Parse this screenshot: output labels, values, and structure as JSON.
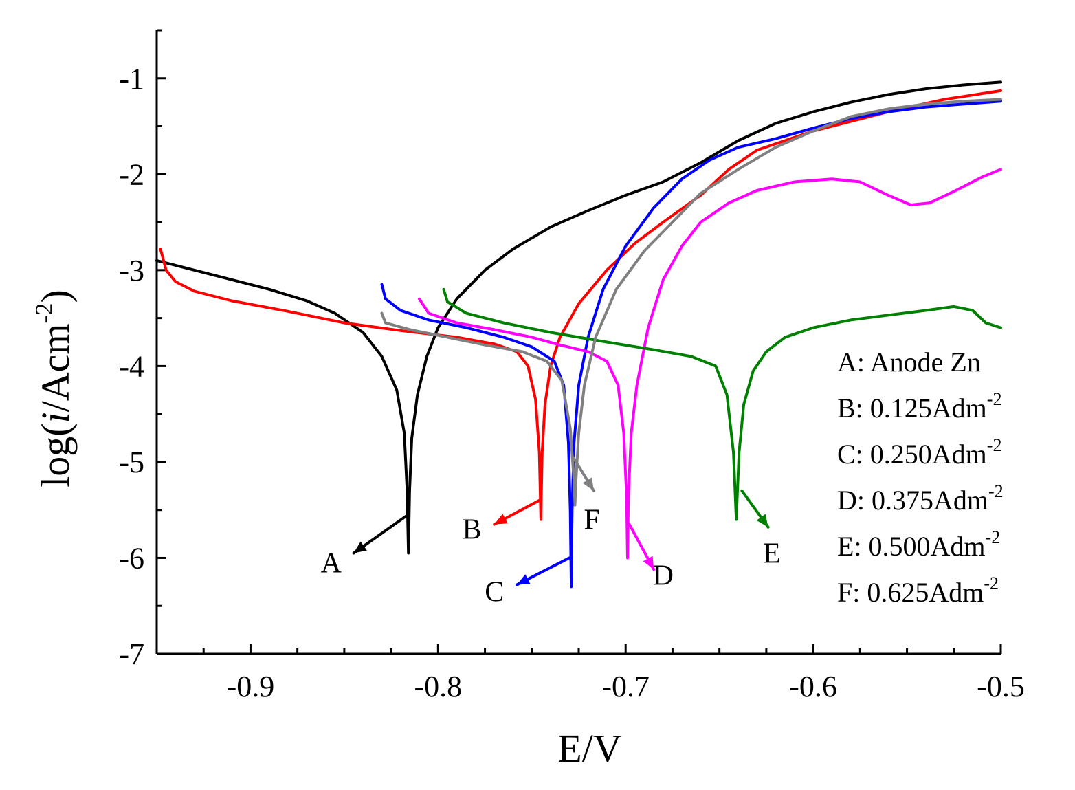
{
  "chart_data": {
    "type": "line",
    "xlabel": "E/V",
    "ylabel_parts": {
      "pre": "log(",
      "italic": "i",
      "unit": "/Acm",
      "sup": "-2",
      "post": ")"
    },
    "xlim": [
      -0.95,
      -0.5
    ],
    "ylim": [
      -7,
      -0.5
    ],
    "xticks": [
      -0.9,
      -0.8,
      -0.7,
      -0.6,
      -0.5
    ],
    "xtick_labels": [
      "-0.9",
      "-0.8",
      "-0.7",
      "-0.6",
      "-0.5"
    ],
    "yticks": [
      -7,
      -6,
      -5,
      -4,
      -3,
      -2,
      -1
    ],
    "ytick_labels": [
      "-7",
      "-6",
      "-5",
      "-4",
      "-3",
      "-2",
      "-1"
    ],
    "legend_position": "bottom-right",
    "legend": [
      {
        "text": "A: Anode Zn"
      },
      {
        "text": "B: 0.125Adm",
        "sup": "-2"
      },
      {
        "text": "C: 0.250Adm",
        "sup": "-2"
      },
      {
        "text": "D: 0.375Adm",
        "sup": "-2"
      },
      {
        "text": "E: 0.500Adm",
        "sup": "-2"
      },
      {
        "text": "F: 0.625Adm",
        "sup": "-2"
      }
    ],
    "series": [
      {
        "name": "A",
        "label": "A: Anode Zn",
        "color": "#000000",
        "corrosion_potential": -0.815,
        "points": [
          [
            -0.95,
            -2.9
          ],
          [
            -0.92,
            -3.05
          ],
          [
            -0.89,
            -3.2
          ],
          [
            -0.87,
            -3.32
          ],
          [
            -0.855,
            -3.45
          ],
          [
            -0.84,
            -3.65
          ],
          [
            -0.83,
            -3.9
          ],
          [
            -0.822,
            -4.25
          ],
          [
            -0.818,
            -4.7
          ],
          [
            -0.8165,
            -5.3
          ],
          [
            -0.8158,
            -5.95
          ],
          [
            -0.8152,
            -5.3
          ],
          [
            -0.814,
            -4.75
          ],
          [
            -0.811,
            -4.3
          ],
          [
            -0.806,
            -3.9
          ],
          [
            -0.8,
            -3.6
          ],
          [
            -0.79,
            -3.3
          ],
          [
            -0.775,
            -3.0
          ],
          [
            -0.76,
            -2.78
          ],
          [
            -0.74,
            -2.55
          ],
          [
            -0.72,
            -2.38
          ],
          [
            -0.7,
            -2.22
          ],
          [
            -0.68,
            -2.08
          ],
          [
            -0.66,
            -1.88
          ],
          [
            -0.64,
            -1.65
          ],
          [
            -0.62,
            -1.47
          ],
          [
            -0.6,
            -1.35
          ],
          [
            -0.58,
            -1.25
          ],
          [
            -0.56,
            -1.17
          ],
          [
            -0.54,
            -1.11
          ],
          [
            -0.52,
            -1.07
          ],
          [
            -0.5,
            -1.04
          ]
        ]
      },
      {
        "name": "B",
        "label": "B: 0.125Adm-2",
        "color": "#ff0000",
        "corrosion_potential": -0.745,
        "points": [
          [
            -0.948,
            -2.78
          ],
          [
            -0.945,
            -3.0
          ],
          [
            -0.94,
            -3.12
          ],
          [
            -0.93,
            -3.22
          ],
          [
            -0.91,
            -3.32
          ],
          [
            -0.88,
            -3.43
          ],
          [
            -0.85,
            -3.55
          ],
          [
            -0.82,
            -3.63
          ],
          [
            -0.79,
            -3.7
          ],
          [
            -0.77,
            -3.77
          ],
          [
            -0.758,
            -3.85
          ],
          [
            -0.752,
            -4.0
          ],
          [
            -0.748,
            -4.35
          ],
          [
            -0.746,
            -4.9
          ],
          [
            -0.7452,
            -5.6
          ],
          [
            -0.7445,
            -4.9
          ],
          [
            -0.743,
            -4.4
          ],
          [
            -0.74,
            -4.0
          ],
          [
            -0.735,
            -3.7
          ],
          [
            -0.725,
            -3.35
          ],
          [
            -0.71,
            -3.0
          ],
          [
            -0.695,
            -2.72
          ],
          [
            -0.68,
            -2.5
          ],
          [
            -0.66,
            -2.22
          ],
          [
            -0.645,
            -1.95
          ],
          [
            -0.63,
            -1.75
          ],
          [
            -0.6,
            -1.55
          ],
          [
            -0.56,
            -1.35
          ],
          [
            -0.53,
            -1.22
          ],
          [
            -0.5,
            -1.13
          ]
        ]
      },
      {
        "name": "C",
        "label": "C: 0.250Adm-2",
        "color": "#0000ff",
        "corrosion_potential": -0.729,
        "points": [
          [
            -0.83,
            -3.15
          ],
          [
            -0.828,
            -3.3
          ],
          [
            -0.82,
            -3.42
          ],
          [
            -0.805,
            -3.52
          ],
          [
            -0.785,
            -3.6
          ],
          [
            -0.765,
            -3.7
          ],
          [
            -0.75,
            -3.8
          ],
          [
            -0.738,
            -3.95
          ],
          [
            -0.733,
            -4.2
          ],
          [
            -0.7305,
            -4.8
          ],
          [
            -0.7295,
            -5.5
          ],
          [
            -0.729,
            -6.3
          ],
          [
            -0.7285,
            -5.5
          ],
          [
            -0.7275,
            -4.8
          ],
          [
            -0.725,
            -4.2
          ],
          [
            -0.72,
            -3.7
          ],
          [
            -0.712,
            -3.2
          ],
          [
            -0.7,
            -2.75
          ],
          [
            -0.685,
            -2.35
          ],
          [
            -0.67,
            -2.05
          ],
          [
            -0.655,
            -1.85
          ],
          [
            -0.64,
            -1.72
          ],
          [
            -0.62,
            -1.63
          ],
          [
            -0.6,
            -1.52
          ],
          [
            -0.58,
            -1.42
          ],
          [
            -0.56,
            -1.35
          ],
          [
            -0.54,
            -1.3
          ],
          [
            -0.52,
            -1.27
          ],
          [
            -0.5,
            -1.24
          ]
        ]
      },
      {
        "name": "D",
        "label": "D: 0.375Adm-2",
        "color": "#ff00ff",
        "corrosion_potential": -0.699,
        "points": [
          [
            -0.81,
            -3.3
          ],
          [
            -0.805,
            -3.45
          ],
          [
            -0.79,
            -3.55
          ],
          [
            -0.77,
            -3.62
          ],
          [
            -0.75,
            -3.7
          ],
          [
            -0.735,
            -3.78
          ],
          [
            -0.72,
            -3.85
          ],
          [
            -0.71,
            -3.95
          ],
          [
            -0.704,
            -4.2
          ],
          [
            -0.701,
            -4.7
          ],
          [
            -0.6995,
            -5.35
          ],
          [
            -0.699,
            -6.0
          ],
          [
            -0.6985,
            -5.35
          ],
          [
            -0.697,
            -4.7
          ],
          [
            -0.694,
            -4.2
          ],
          [
            -0.688,
            -3.6
          ],
          [
            -0.68,
            -3.1
          ],
          [
            -0.67,
            -2.75
          ],
          [
            -0.66,
            -2.5
          ],
          [
            -0.645,
            -2.3
          ],
          [
            -0.63,
            -2.17
          ],
          [
            -0.61,
            -2.08
          ],
          [
            -0.59,
            -2.05
          ],
          [
            -0.575,
            -2.08
          ],
          [
            -0.56,
            -2.22
          ],
          [
            -0.548,
            -2.32
          ],
          [
            -0.538,
            -2.3
          ],
          [
            -0.525,
            -2.18
          ],
          [
            -0.51,
            -2.03
          ],
          [
            -0.5,
            -1.95
          ]
        ]
      },
      {
        "name": "E",
        "label": "E: 0.500Adm-2",
        "color": "#008000",
        "corrosion_potential": -0.641,
        "points": [
          [
            -0.797,
            -3.2
          ],
          [
            -0.795,
            -3.33
          ],
          [
            -0.785,
            -3.45
          ],
          [
            -0.765,
            -3.55
          ],
          [
            -0.74,
            -3.65
          ],
          [
            -0.71,
            -3.75
          ],
          [
            -0.685,
            -3.83
          ],
          [
            -0.665,
            -3.9
          ],
          [
            -0.652,
            -4.0
          ],
          [
            -0.646,
            -4.3
          ],
          [
            -0.6425,
            -4.9
          ],
          [
            -0.641,
            -5.6
          ],
          [
            -0.6395,
            -4.9
          ],
          [
            -0.637,
            -4.4
          ],
          [
            -0.632,
            -4.05
          ],
          [
            -0.625,
            -3.85
          ],
          [
            -0.615,
            -3.7
          ],
          [
            -0.6,
            -3.6
          ],
          [
            -0.58,
            -3.52
          ],
          [
            -0.56,
            -3.47
          ],
          [
            -0.54,
            -3.42
          ],
          [
            -0.525,
            -3.38
          ],
          [
            -0.515,
            -3.42
          ],
          [
            -0.508,
            -3.55
          ],
          [
            -0.5,
            -3.6
          ]
        ]
      },
      {
        "name": "F",
        "label": "F: 0.625Adm-2",
        "color": "#808080",
        "corrosion_potential": -0.727,
        "points": [
          [
            -0.83,
            -3.45
          ],
          [
            -0.828,
            -3.55
          ],
          [
            -0.815,
            -3.62
          ],
          [
            -0.795,
            -3.7
          ],
          [
            -0.775,
            -3.78
          ],
          [
            -0.755,
            -3.85
          ],
          [
            -0.742,
            -3.95
          ],
          [
            -0.734,
            -4.15
          ],
          [
            -0.7295,
            -4.65
          ],
          [
            -0.7275,
            -5.2
          ],
          [
            -0.727,
            -5.45
          ],
          [
            -0.7265,
            -5.2
          ],
          [
            -0.725,
            -4.7
          ],
          [
            -0.722,
            -4.2
          ],
          [
            -0.716,
            -3.7
          ],
          [
            -0.705,
            -3.2
          ],
          [
            -0.69,
            -2.8
          ],
          [
            -0.675,
            -2.5
          ],
          [
            -0.66,
            -2.2
          ],
          [
            -0.64,
            -1.95
          ],
          [
            -0.62,
            -1.72
          ],
          [
            -0.6,
            -1.55
          ],
          [
            -0.58,
            -1.4
          ],
          [
            -0.56,
            -1.32
          ],
          [
            -0.54,
            -1.27
          ],
          [
            -0.52,
            -1.24
          ],
          [
            -0.5,
            -1.22
          ]
        ]
      }
    ],
    "annotations": [
      {
        "text": "A",
        "series": "A",
        "from": [
          -0.816,
          -5.55
        ],
        "to": [
          -0.845,
          -5.95
        ],
        "label_pos": [
          -0.857,
          -6.05
        ]
      },
      {
        "text": "B",
        "series": "B",
        "from": [
          -0.746,
          -5.4
        ],
        "to": [
          -0.77,
          -5.65
        ],
        "label_pos": [
          -0.782,
          -5.7
        ]
      },
      {
        "text": "C",
        "series": "C",
        "from": [
          -0.73,
          -6.0
        ],
        "to": [
          -0.758,
          -6.28
        ],
        "label_pos": [
          -0.77,
          -6.35
        ]
      },
      {
        "text": "D",
        "series": "D",
        "from": [
          -0.698,
          -5.65
        ],
        "to": [
          -0.685,
          -6.12
        ],
        "label_pos": [
          -0.68,
          -6.18
        ]
      },
      {
        "text": "E",
        "series": "E",
        "from": [
          -0.638,
          -5.3
        ],
        "to": [
          -0.624,
          -5.68
        ],
        "label_pos": [
          -0.622,
          -5.95
        ]
      },
      {
        "text": "F",
        "series": "F",
        "from": [
          -0.728,
          -4.95
        ],
        "to": [
          -0.717,
          -5.3
        ],
        "label_pos": [
          -0.718,
          -5.6
        ]
      }
    ]
  }
}
